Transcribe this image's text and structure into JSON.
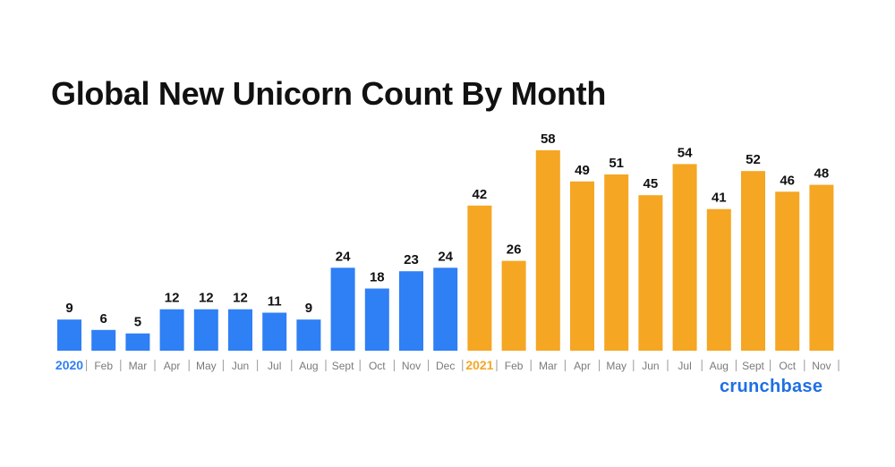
{
  "chart_data": {
    "type": "bar",
    "title": "Global New Unicorn Count By Month",
    "categories": [
      "2020",
      "Feb",
      "Mar",
      "Apr",
      "May",
      "Jun",
      "Jul",
      "Aug",
      "Sept",
      "Oct",
      "Nov",
      "Dec",
      "2021",
      "Feb",
      "Mar",
      "Apr",
      "May",
      "Jun",
      "Jul",
      "Aug",
      "Sept",
      "Oct",
      "Nov"
    ],
    "values": [
      9,
      6,
      5,
      12,
      12,
      12,
      11,
      9,
      24,
      18,
      23,
      24,
      42,
      26,
      58,
      49,
      51,
      45,
      54,
      41,
      52,
      46,
      48
    ],
    "year_groups": [
      {
        "label": "2020",
        "count": 12,
        "color": "#2F7FF5"
      },
      {
        "label": "2021",
        "count": 11,
        "color": "#F5A623"
      }
    ],
    "xlabel": "",
    "ylabel": "",
    "ylim": [
      0,
      58
    ],
    "grid": false,
    "legend": "none",
    "data_labels": true
  },
  "brand": {
    "logo_text": "crunchbase",
    "logo_color": "#1F6FE5"
  },
  "colors": {
    "title": "#111111",
    "data_label": "#111111",
    "tick_label": "#7a7a7a",
    "separator": "#9a9a9a"
  }
}
